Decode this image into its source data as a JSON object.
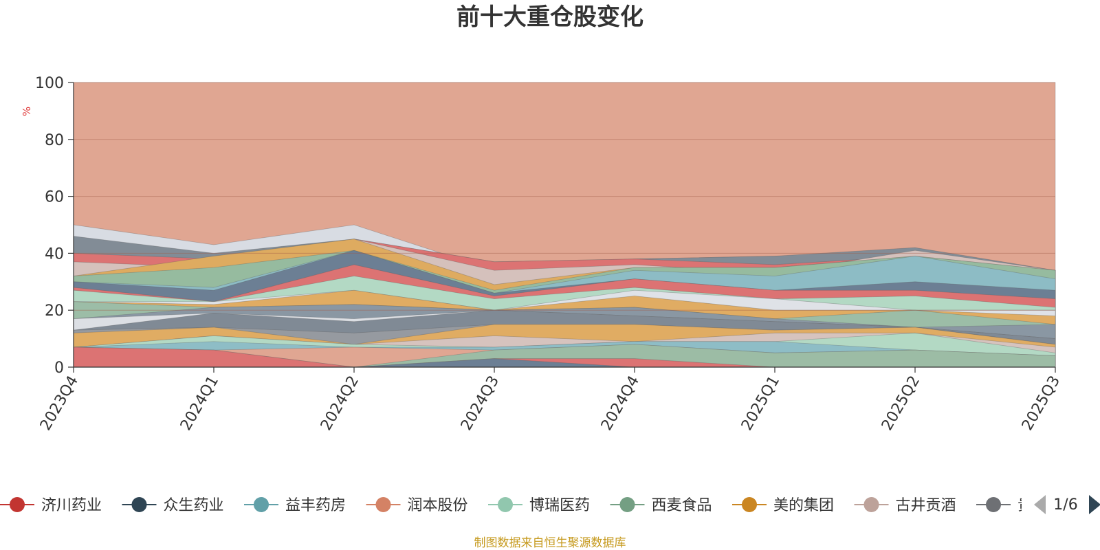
{
  "chart_data": {
    "type": "area",
    "stacked": true,
    "title": "前十大重仓股变化",
    "ylabel": "%",
    "ylim": [
      0,
      100
    ],
    "yticks": [
      0,
      20,
      40,
      60,
      80,
      100
    ],
    "categories": [
      "2023Q4",
      "2024Q1",
      "2024Q2",
      "2024Q3",
      "2024Q4",
      "2025Q1",
      "2025Q2",
      "2025Q3"
    ],
    "series": [
      {
        "name": "济川药业",
        "color": "#d97070",
        "values": [
          7,
          6.5,
          0,
          0,
          0,
          0,
          0,
          0
        ]
      },
      {
        "name": "众生药业",
        "color": "#6b7f95",
        "values": [
          0,
          0,
          0,
          3,
          0,
          0,
          0,
          0
        ]
      },
      {
        "name": "益丰药房",
        "color": "#8dbcc4",
        "values": [
          0,
          4,
          0,
          3.5,
          0,
          0,
          0,
          0
        ]
      },
      {
        "name": "润本股份",
        "color": "#e0a090",
        "values": [
          0,
          0,
          0,
          0,
          3.5,
          0,
          0,
          0
        ]
      },
      {
        "name": "博瑞医药",
        "color": "#b2d8c4",
        "values": [
          0,
          4,
          7,
          0,
          0,
          0,
          0,
          0
        ]
      },
      {
        "name": "西麦食品",
        "color": "#9bbba3",
        "values": [
          0,
          0,
          0,
          0,
          5,
          4.5,
          6,
          4
        ]
      },
      {
        "name": "美的集团",
        "color": "#e0ac63",
        "values": [
          5.5,
          0,
          0,
          0,
          0,
          0,
          0,
          0
        ]
      },
      {
        "name": "古井贡酒",
        "color": "#d3bdb8",
        "values": [
          0,
          0,
          0,
          4,
          0,
          0,
          0,
          0
        ]
      },
      {
        "name": "贵州茅台",
        "color": "#96999e",
        "values": [
          0,
          0,
          5,
          5,
          6.5,
          0,
          0,
          0
        ]
      }
    ],
    "legend": {
      "items": [
        {
          "name": "济川药业",
          "color": "#c23531"
        },
        {
          "name": "众生药业",
          "color": "#2f4554"
        },
        {
          "name": "益丰药房",
          "color": "#61a0a8"
        },
        {
          "name": "润本股份",
          "color": "#d48265"
        },
        {
          "name": "博瑞医药",
          "color": "#91c7ae"
        },
        {
          "name": "西麦食品",
          "color": "#749f83"
        },
        {
          "name": "美的集团",
          "color": "#ca8622"
        },
        {
          "name": "古井贡酒",
          "color": "#bda29a"
        },
        {
          "name": "贵州茅台",
          "color": "#6e7074"
        }
      ],
      "truncated_label": "贵",
      "page_indicator": "1/6"
    },
    "footer": "制图数据来自恒生聚源数据库"
  },
  "layers": [
    {
      "color": "#e0a692",
      "values": [
        100,
        100,
        100,
        100,
        100,
        100,
        100,
        100
      ]
    },
    {
      "color": "#d8dce3",
      "values": [
        50,
        43,
        50,
        34,
        38,
        39,
        39,
        34
      ]
    },
    {
      "color": "#828c96",
      "values": [
        46,
        40,
        45,
        37,
        38,
        39,
        42,
        34
      ]
    },
    {
      "color": "#dc7373",
      "values": [
        40,
        38,
        45,
        37,
        38,
        36,
        39,
        34
      ]
    },
    {
      "color": "#d5c1bc",
      "values": [
        37,
        35,
        45,
        34,
        36,
        33,
        41,
        34
      ]
    },
    {
      "color": "#deab60",
      "values": [
        32,
        39,
        45,
        29,
        35,
        35,
        39,
        34
      ]
    },
    {
      "color": "#96bb9f",
      "values": [
        32,
        35,
        41,
        27,
        35,
        35,
        39,
        34
      ]
    },
    {
      "color": "#8dbcc5",
      "values": [
        30,
        28,
        41,
        26,
        34,
        32,
        39,
        31
      ]
    },
    {
      "color": "#6c7f94",
      "values": [
        30,
        27,
        41,
        26,
        31,
        27,
        30,
        27
      ]
    },
    {
      "color": "#dc7373",
      "values": [
        28,
        23,
        36,
        25,
        31,
        27,
        27,
        24
      ]
    },
    {
      "color": "#b3d9c4",
      "values": [
        27,
        23,
        32,
        24,
        28,
        24,
        25,
        21
      ]
    },
    {
      "color": "#dfe2e7",
      "values": [
        23,
        23,
        27,
        20,
        27,
        24,
        20,
        20
      ]
    },
    {
      "color": "#e0ac63",
      "values": [
        23,
        22,
        27,
        20,
        25,
        20,
        20,
        18
      ]
    },
    {
      "color": "#9cbda7",
      "values": [
        23,
        21,
        22,
        20,
        21,
        17,
        20,
        15
      ]
    },
    {
      "color": "#8a97a3",
      "values": [
        17,
        21,
        22,
        20,
        21,
        17,
        14,
        15
      ]
    },
    {
      "color": "#dcdfe4",
      "values": [
        17,
        19,
        17,
        20,
        18,
        16,
        14,
        10
      ]
    },
    {
      "color": "#808a95",
      "values": [
        13,
        19,
        16,
        20,
        18,
        16,
        14,
        10
      ]
    },
    {
      "color": "#969aa0",
      "values": [
        13,
        14,
        12,
        15,
        15,
        13,
        14,
        8
      ]
    },
    {
      "color": "#e0ac63",
      "values": [
        12,
        14,
        8,
        15,
        15,
        13,
        14,
        8
      ]
    },
    {
      "color": "#d6c3be",
      "values": [
        7,
        11,
        8,
        11,
        9,
        12,
        12,
        7
      ]
    },
    {
      "color": "#b3d9c4",
      "values": [
        7,
        11,
        8,
        7,
        9,
        9,
        12,
        5
      ]
    },
    {
      "color": "#8ebdc6",
      "values": [
        7,
        9,
        7,
        7,
        9,
        9,
        6,
        4
      ]
    },
    {
      "color": "#e0a692",
      "values": [
        7,
        6,
        7,
        6,
        8,
        5,
        6,
        4
      ]
    },
    {
      "color": "#9cbca5",
      "values": [
        7,
        6,
        0,
        6,
        8,
        5,
        6,
        4
      ]
    },
    {
      "color": "#dc7373",
      "values": [
        7,
        6,
        0,
        3,
        3,
        0,
        0,
        0
      ]
    },
    {
      "color": "#6c7f94",
      "values": [
        0,
        0,
        0,
        3,
        0,
        0,
        0,
        0
      ]
    }
  ],
  "colors": {
    "unit": "#e03b3b",
    "footer": "#c69a1e",
    "pager_inactive": "#aaaaaa",
    "pager_active": "#2f4554"
  }
}
